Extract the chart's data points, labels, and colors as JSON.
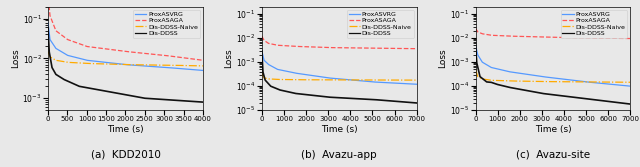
{
  "subplots": [
    {
      "title": "(a)  KDD2010",
      "xlabel": "Time (s)",
      "ylabel": "Loss",
      "xlim": [
        0,
        4000
      ],
      "ylim": [
        0.0005,
        0.2
      ],
      "xticks": [
        0,
        500,
        1000,
        1500,
        2000,
        2500,
        3000,
        3500,
        4000
      ],
      "curves": {
        "ProxASVRG": {
          "color": "#5599ff",
          "linestyle": "-",
          "points_x": [
            0,
            50,
            200,
            500,
            1000,
            2000,
            3000,
            4000
          ],
          "points_y": [
            0.08,
            0.03,
            0.018,
            0.012,
            0.009,
            0.007,
            0.006,
            0.005
          ]
        },
        "ProxASAGA": {
          "color": "#ff5555",
          "linestyle": "--",
          "points_x": [
            0,
            50,
            200,
            500,
            1000,
            2000,
            3000,
            4000
          ],
          "points_y": [
            0.4,
            0.12,
            0.05,
            0.03,
            0.02,
            0.015,
            0.012,
            0.009
          ]
        },
        "Dis-DDSS-Naive": {
          "color": "#ffaa00",
          "linestyle": "-.",
          "points_x": [
            0,
            50,
            200,
            500,
            1000,
            2000,
            3000,
            4000
          ],
          "points_y": [
            0.015,
            0.011,
            0.009,
            0.008,
            0.0075,
            0.007,
            0.0068,
            0.0065
          ]
        },
        "Dis-DDSS": {
          "color": "#111111",
          "linestyle": "-",
          "points_x": [
            0,
            30,
            100,
            200,
            400,
            800,
            1500,
            2500,
            4000
          ],
          "points_y": [
            0.06,
            0.015,
            0.006,
            0.004,
            0.003,
            0.002,
            0.0015,
            0.001,
            0.0008
          ]
        }
      }
    },
    {
      "title": "(b)  Avazu-app",
      "xlabel": "Time (s)",
      "ylabel": "Loss",
      "xlim": [
        0,
        7000
      ],
      "ylim": [
        1e-05,
        0.2
      ],
      "xticks": [
        0,
        1000,
        2000,
        3000,
        4000,
        5000,
        6000,
        7000
      ],
      "curves": {
        "ProxASVRG": {
          "color": "#5599ff",
          "linestyle": "-",
          "points_x": [
            0,
            100,
            300,
            700,
            1500,
            3000,
            5000,
            7000
          ],
          "points_y": [
            0.003,
            0.0012,
            0.0008,
            0.0005,
            0.00035,
            0.00022,
            0.00015,
            0.00012
          ]
        },
        "ProxASAGA": {
          "color": "#ff5555",
          "linestyle": "--",
          "points_x": [
            0,
            100,
            300,
            700,
            1500,
            3000,
            5000,
            7000
          ],
          "points_y": [
            0.012,
            0.008,
            0.006,
            0.005,
            0.0045,
            0.004,
            0.0038,
            0.0036
          ]
        },
        "Dis-DDSS-Naive": {
          "color": "#ffaa00",
          "linestyle": "-.",
          "points_x": [
            0,
            100,
            300,
            700,
            1500,
            3000,
            5000,
            7000
          ],
          "points_y": [
            0.00035,
            0.00022,
            0.0002,
            0.00019,
            0.000185,
            0.000182,
            0.00018,
            0.000178
          ]
        },
        "Dis-DDSS": {
          "color": "#111111",
          "linestyle": "-",
          "points_x": [
            0,
            50,
            150,
            400,
            800,
            1500,
            3000,
            5000,
            7000
          ],
          "points_y": [
            0.003,
            0.0004,
            0.00018,
            0.0001,
            7e-05,
            5e-05,
            3.5e-05,
            2.8e-05,
            2e-05
          ]
        }
      }
    },
    {
      "title": "(c)  Avazu-site",
      "xlabel": "Time (s)",
      "ylabel": "Loss",
      "xlim": [
        0,
        7000
      ],
      "ylim": [
        1e-05,
        0.2
      ],
      "xticks": [
        0,
        1000,
        2000,
        3000,
        4000,
        5000,
        6000,
        7000
      ],
      "curves": {
        "ProxASVRG": {
          "color": "#5599ff",
          "linestyle": "-",
          "points_x": [
            0,
            100,
            300,
            700,
            1500,
            3000,
            5000,
            7000
          ],
          "points_y": [
            0.005,
            0.002,
            0.001,
            0.0006,
            0.0004,
            0.00025,
            0.00015,
            0.0001
          ]
        },
        "ProxASAGA": {
          "color": "#ff5555",
          "linestyle": "--",
          "points_x": [
            0,
            100,
            300,
            700,
            1500,
            3000,
            5000,
            7000
          ],
          "points_y": [
            0.025,
            0.018,
            0.015,
            0.013,
            0.012,
            0.011,
            0.01,
            0.0095
          ]
        },
        "Dis-DDSS-Naive": {
          "color": "#ffaa00",
          "linestyle": "-.",
          "points_x": [
            0,
            100,
            300,
            700,
            1500,
            3000,
            5000,
            7000
          ],
          "points_y": [
            0.0005,
            0.00025,
            0.0002,
            0.000175,
            0.000165,
            0.000155,
            0.00015,
            0.000145
          ]
        },
        "Dis-DDSS": {
          "color": "#111111",
          "linestyle": "-",
          "points_x": [
            0,
            50,
            200,
            500,
            700,
            950,
            1500,
            3000,
            5000,
            7000
          ],
          "points_y": [
            0.005,
            0.001,
            0.00025,
            0.00015,
            0.000145,
            0.00012,
            9e-05,
            5e-05,
            3e-05,
            1.8e-05
          ]
        }
      }
    }
  ],
  "legend_labels": [
    "ProxASVRG",
    "ProxASAGA",
    "Dis-DDSS-Naive",
    "Dis-DDSS"
  ],
  "legend_colors": [
    "#5599ff",
    "#ff5555",
    "#ffaa00",
    "#111111"
  ],
  "legend_linestyles": [
    "-",
    "--",
    "-.",
    "-"
  ],
  "fontsize": 6.5,
  "title_fontsize": 7.5,
  "background_color": "#e8e8e8"
}
